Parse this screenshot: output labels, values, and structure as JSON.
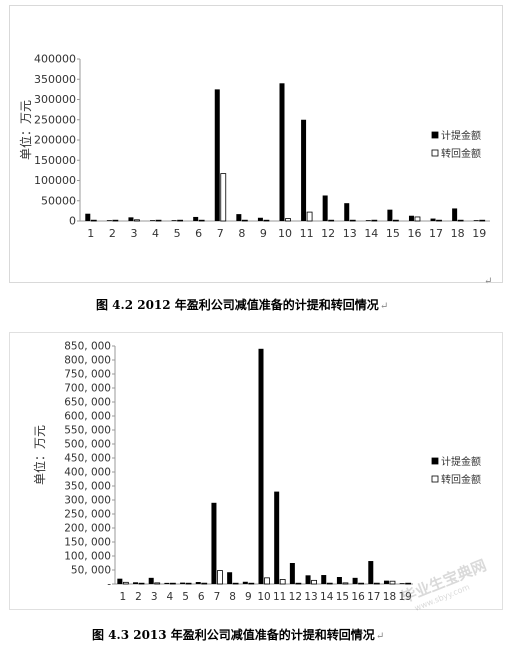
{
  "chart_data": [
    {
      "type": "bar",
      "ylabel": "单位：万元",
      "categories": [
        "1",
        "2",
        "3",
        "4",
        "5",
        "6",
        "7",
        "8",
        "9",
        "10",
        "11",
        "12",
        "13",
        "14",
        "15",
        "16",
        "17",
        "18",
        "19"
      ],
      "yticks": [
        "0",
        "50000",
        "100000",
        "150000",
        "200000",
        "250000",
        "300000",
        "350000",
        "400000"
      ],
      "ylim": [
        0,
        400000
      ],
      "legend_position": "right",
      "grid": false,
      "series": [
        {
          "name": "计提金额",
          "color": "#000000",
          "values": [
            18000,
            1000,
            9000,
            2000,
            2000,
            10000,
            325000,
            17000,
            8000,
            340000,
            250000,
            63000,
            44000,
            2000,
            28000,
            13000,
            6000,
            31000,
            1000
          ]
        },
        {
          "name": "转回金额",
          "color": "#ffffff",
          "values": [
            2000,
            500,
            3000,
            500,
            500,
            500,
            117000,
            2000,
            500,
            6000,
            22000,
            2000,
            2000,
            2000,
            2000,
            10000,
            2000,
            2000,
            500
          ]
        }
      ],
      "caption": "图 4.2 2012 年盈利公司减值准备的计提和转回情况"
    },
    {
      "type": "bar",
      "ylabel": "单位：万元",
      "categories": [
        "1",
        "2",
        "3",
        "4",
        "5",
        "6",
        "7",
        "8",
        "9",
        "10",
        "11",
        "12",
        "13",
        "14",
        "15",
        "16",
        "17",
        "18",
        "19"
      ],
      "yticks": [
        "-",
        "50, 000",
        "100, 000",
        "150, 000",
        "200, 000",
        "250, 000",
        "300, 000",
        "350, 000",
        "400, 000",
        "450, 000",
        "500, 000",
        "550, 000",
        "600, 000",
        "650, 000",
        "700, 000",
        "750, 000",
        "800, 000",
        "850, 000"
      ],
      "ylim": [
        0,
        850000
      ],
      "legend_position": "right",
      "grid": false,
      "series": [
        {
          "name": "计提金额",
          "color": "#000000",
          "values": [
            19000,
            6000,
            22000,
            4000,
            5000,
            7000,
            290000,
            42000,
            8000,
            840000,
            330000,
            75000,
            31000,
            32000,
            25000,
            22000,
            82000,
            12000,
            2000
          ]
        },
        {
          "name": "转回金额",
          "color": "#ffffff",
          "values": [
            6000,
            2000,
            4000,
            2000,
            2000,
            3000,
            48000,
            2000,
            2000,
            22000,
            16000,
            2000,
            13000,
            3000,
            4000,
            3000,
            3000,
            10000,
            2000
          ]
        }
      ],
      "caption": "图 4.3 2013 年盈利公司减值准备的计提和转回情况"
    }
  ],
  "marks": {
    "return_mark": "↵"
  },
  "watermark": {
    "text": "毕业生宝典网",
    "sub": "www.sbyy.com"
  }
}
